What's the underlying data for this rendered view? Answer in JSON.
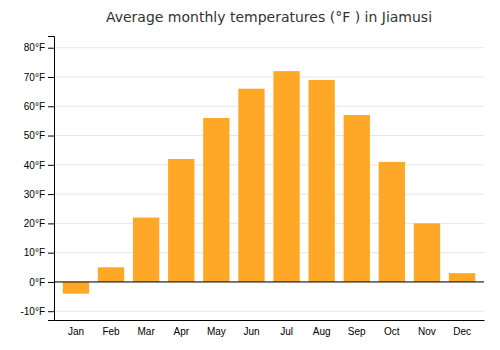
{
  "chart_data": {
    "type": "bar",
    "title": "Average monthly temperatures (°F ) in Jiamusi",
    "categories": [
      "Jan",
      "Feb",
      "Mar",
      "Apr",
      "May",
      "Jun",
      "Jul",
      "Aug",
      "Sep",
      "Oct",
      "Nov",
      "Dec"
    ],
    "values": [
      -4,
      5,
      22,
      42,
      56,
      66,
      72,
      69,
      57,
      41,
      20,
      3
    ],
    "color": "#FFA726",
    "ylim": [
      -13,
      84
    ],
    "yticks": [
      {
        "value": -10,
        "label": "-10°F"
      },
      {
        "value": 0,
        "label": "0°F"
      },
      {
        "value": 10,
        "label": "10°F"
      },
      {
        "value": 20,
        "label": "20°F"
      },
      {
        "value": 30,
        "label": "30°F"
      },
      {
        "value": 40,
        "label": "40°F"
      },
      {
        "value": 50,
        "label": "50°F"
      },
      {
        "value": 60,
        "label": "60°F"
      },
      {
        "value": 70,
        "label": "70°F"
      },
      {
        "value": 80,
        "label": "80°F"
      }
    ],
    "grid": true
  }
}
